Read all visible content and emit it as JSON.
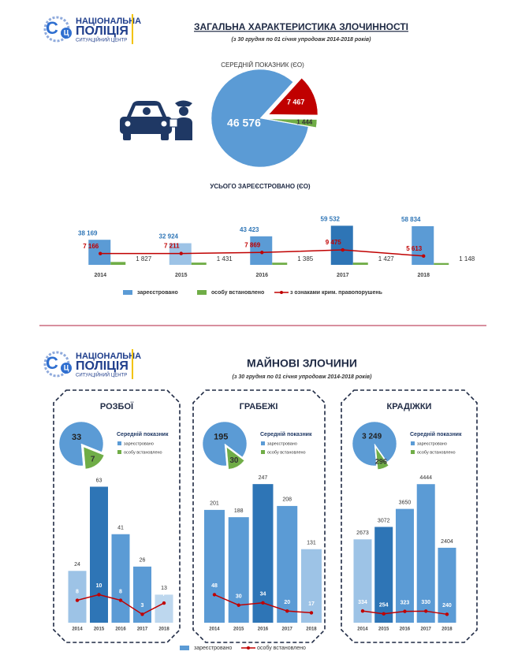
{
  "logo": {
    "mark_1": "С",
    "mark_2": "Ц",
    "line1": "НАЦІОНАЛЬНА",
    "line2": "ПОЛІЦІЯ",
    "line3": "СИТУАЦІЙНИЙ ЦЕНТР"
  },
  "headers": [
    {
      "title": "ЗАГАЛЬНА ХАРАКТЕРИСТИКА ЗЛОЧИННОСТІ",
      "subtitle": "(з 30 грудня по 01 січня упродовж 2014-2018 років)"
    },
    {
      "title": "МАЙНОВІ ЗЛОЧИНИ",
      "subtitle": "(з 30 грудня по 01 січня упродовж 2014-2018 років)"
    }
  ],
  "chart_data": [
    {
      "type": "pie",
      "title": "СЕРЕДНІЙ ПОКАЗНИК (ЄО)",
      "values": [
        46576,
        7467,
        1444
      ],
      "value_labels": [
        "46 576",
        "7 467",
        "1 444"
      ],
      "colors": [
        "#5b9bd5",
        "#c00000",
        "#70ad47"
      ]
    },
    {
      "type": "bar",
      "title": "УСЬОГО ЗАРЕЄСТРОВАНО (ЄО)",
      "categories": [
        "2014",
        "2015",
        "2016",
        "2017",
        "2018"
      ],
      "series": [
        {
          "name": "зареєстровано",
          "type": "bar",
          "color": "#5b9bd5",
          "colors": [
            "#5b9bd5",
            "#9dc3e6",
            "#5b9bd5",
            "#2e75b6",
            "#5b9bd5"
          ],
          "values": [
            38169,
            32924,
            43423,
            59532,
            58834
          ],
          "value_labels": [
            "38 169",
            "32 924",
            "43 423",
            "59 532",
            "58 834"
          ]
        },
        {
          "name": "особу встановлено",
          "type": "bar",
          "axis": "y2",
          "color": "#70ad47",
          "values": [
            1827,
            1431,
            1385,
            1427,
            1148
          ],
          "value_labels": [
            "1 827",
            "1 431",
            "1 385",
            "1 427",
            "1 148"
          ]
        },
        {
          "name": "з ознаками крим. правопорушень",
          "type": "line",
          "axis": "y2",
          "color": "#c00000",
          "values": [
            7166,
            7211,
            7869,
            9475,
            5613
          ],
          "value_labels": [
            "7 166",
            "7 211",
            "7 869",
            "9 475",
            "5 613"
          ]
        }
      ],
      "ylim": [
        0,
        60000
      ],
      "y2lim": [
        0,
        25000
      ],
      "legend": "bottom"
    },
    {
      "type": "pie",
      "title": "Середній показник",
      "categories": [
        "зареєстровано",
        "особу встановлено"
      ],
      "values": [
        33,
        7
      ],
      "colors": [
        "#5b9bd5",
        "#70ad47"
      ]
    },
    {
      "type": "bar",
      "title": "РОЗБОЇ",
      "categories": [
        "2014",
        "2015",
        "2016",
        "2017",
        "2018"
      ],
      "series": [
        {
          "name": "зареєстровано",
          "type": "bar",
          "color": "#5b9bd5",
          "colors": [
            "#9dc3e6",
            "#2e75b6",
            "#5b9bd5",
            "#5b9bd5",
            "#bdd7ee"
          ],
          "values": [
            24,
            63,
            41,
            26,
            13
          ]
        },
        {
          "name": "особу встановлено",
          "type": "line",
          "axis": "y2",
          "color": "#c00000",
          "values": [
            8,
            10,
            8,
            3,
            7
          ]
        }
      ],
      "ylim": [
        0,
        65
      ],
      "y2lim": [
        0,
        50
      ],
      "legend": "bottom"
    },
    {
      "type": "pie",
      "title": "Середній показник",
      "categories": [
        "зареєстровано",
        "особу встановлено"
      ],
      "values": [
        195,
        30
      ],
      "colors": [
        "#5b9bd5",
        "#70ad47"
      ]
    },
    {
      "type": "bar",
      "title": "ГРАБЕЖІ",
      "categories": [
        "2014",
        "2015",
        "2016",
        "2017",
        "2018"
      ],
      "series": [
        {
          "name": "зареєстровано",
          "type": "bar",
          "color": "#5b9bd5",
          "colors": [
            "#5b9bd5",
            "#5b9bd5",
            "#2e75b6",
            "#5b9bd5",
            "#9dc3e6"
          ],
          "values": [
            201,
            188,
            247,
            208,
            131
          ]
        },
        {
          "name": "особу встановлено",
          "type": "line",
          "axis": "y2",
          "color": "#c00000",
          "values": [
            48,
            30,
            34,
            20,
            17
          ]
        }
      ],
      "ylim": [
        0,
        250
      ],
      "y2lim": [
        0,
        240
      ]
    },
    {
      "type": "pie",
      "title": "Середній показник",
      "categories": [
        "зареєстровано",
        "особу встановлено"
      ],
      "values": [
        3249,
        296
      ],
      "value_labels": [
        "3 249",
        "296"
      ],
      "colors": [
        "#5b9bd5",
        "#70ad47"
      ]
    },
    {
      "type": "bar",
      "title": "КРАДІЖКИ",
      "categories": [
        "2014",
        "2015",
        "2016",
        "2017",
        "2018"
      ],
      "series": [
        {
          "name": "зареєстровано",
          "type": "bar",
          "color": "#5b9bd5",
          "colors": [
            "#9dc3e6",
            "#2e75b6",
            "#5b9bd5",
            "#5b9bd5",
            "#5b9bd5"
          ],
          "values": [
            2673,
            3072,
            3650,
            4444,
            2404
          ]
        },
        {
          "name": "особу встановлено",
          "type": "line",
          "axis": "y2",
          "color": "#c00000",
          "values": [
            334,
            254,
            323,
            330,
            240
          ]
        }
      ],
      "ylim": [
        0,
        4500
      ],
      "y2lim": [
        0,
        4000
      ]
    }
  ]
}
